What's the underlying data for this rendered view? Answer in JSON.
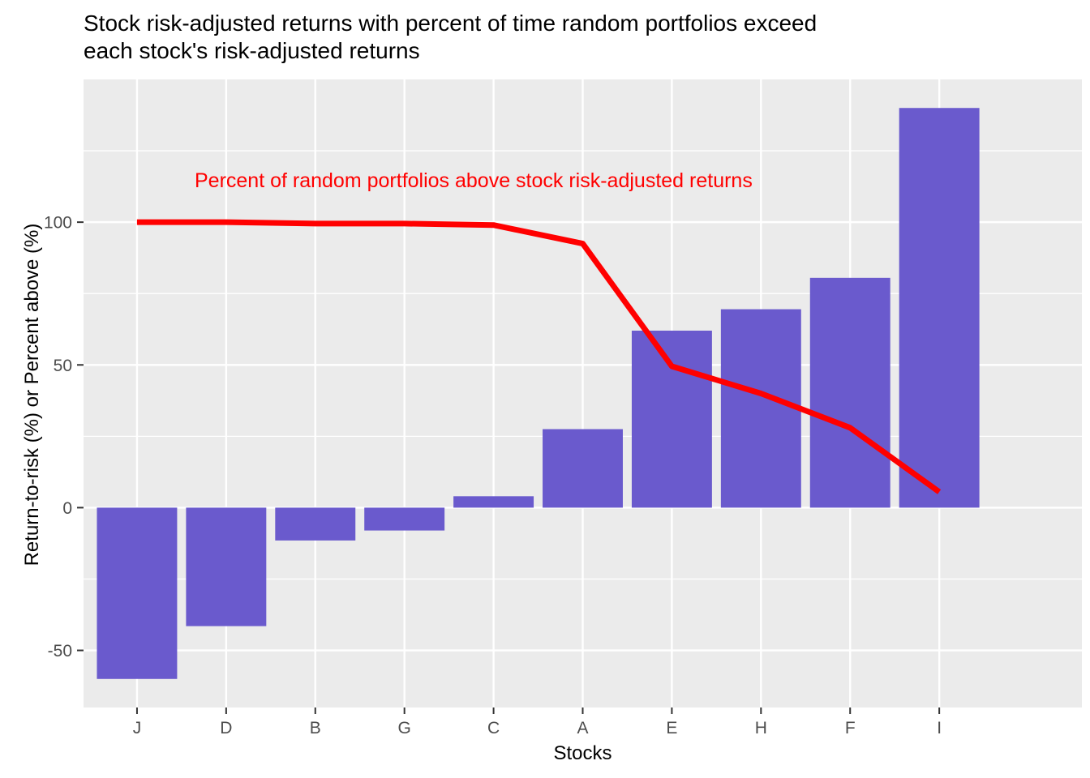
{
  "chart_data": {
    "type": "bar",
    "title": "Stock risk-adjusted returns with percent of time random portfolios exceed each stock's risk-adjusted returns",
    "title_lines": [
      "Stock risk-adjusted returns with percent of time random portfolios exceed",
      "each stock's risk-adjusted returns"
    ],
    "xlabel": "Stocks",
    "ylabel": "Return-to-risk (%) or Percent above (%)",
    "annotation": "Percent of random portfolios above stock risk-adjusted returns",
    "categories": [
      "J",
      "D",
      "B",
      "G",
      "C",
      "A",
      "E",
      "H",
      "F",
      "I"
    ],
    "series": [
      {
        "name": "stock-risk-adjusted-return-bars",
        "type": "bar",
        "values": [
          -60,
          -41.5,
          -11.5,
          -8,
          4,
          27.5,
          62,
          69.5,
          80.5,
          140
        ],
        "color": "#6A5ACD"
      },
      {
        "name": "percent-random-portfolios-above-line",
        "type": "line",
        "values": [
          100,
          100,
          99.5,
          99.5,
          99,
          92.5,
          49.5,
          40,
          28,
          5.5
        ],
        "color": "#FF0000"
      }
    ],
    "ylim": [
      -70,
      150
    ],
    "yticks_major": [
      -50,
      0,
      50,
      100
    ],
    "yticks_minor": [
      -25,
      25,
      75,
      125
    ],
    "grid": "on",
    "legend": "none",
    "colors": {
      "panel_background": "#EBEBEB",
      "grid": "#FFFFFF",
      "axis_text": "#4D4D4D",
      "tick_mark": "#333333",
      "title_text": "#000000",
      "annotation_text": "#FF0000"
    }
  }
}
